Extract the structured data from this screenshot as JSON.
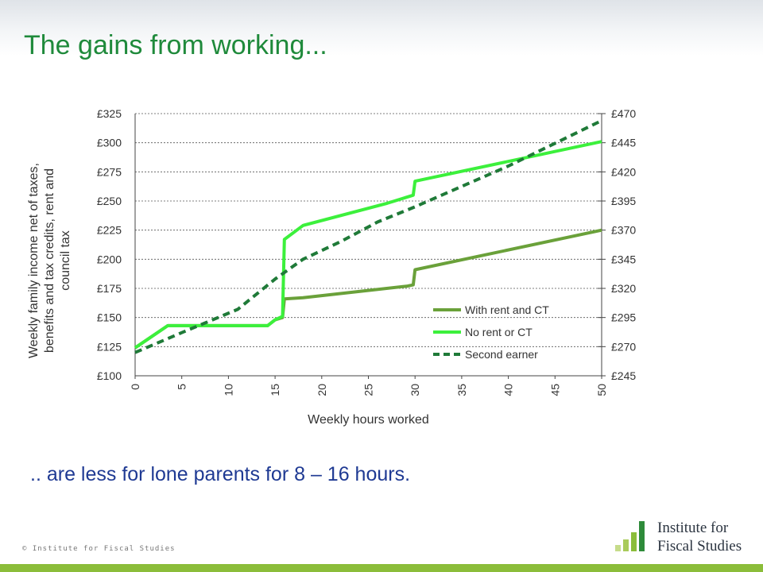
{
  "title": "The gains from working...",
  "subtitle": ".. are less for lone parents for 8 – 16 hours.",
  "copyright": "© Institute for Fiscal Studies",
  "logo": {
    "line1": "Institute for",
    "line2": "Fiscal Studies"
  },
  "colors": {
    "title": "#1f8a3b",
    "subtitle": "#1f3a93",
    "with_rent": "#6aa13a",
    "no_rent": "#3cf03c",
    "second_earner": "#1f7a38",
    "bottom_bar": "#8bbd3a"
  },
  "chart_data": {
    "type": "line",
    "xlabel": "Weekly hours worked",
    "ylabel": "Weekly family income net of taxes, benefits and tax credits, rent and council tax",
    "xlim": [
      0,
      50
    ],
    "ylim_left": [
      100,
      325
    ],
    "ylim_right": [
      245,
      470
    ],
    "x_ticks": [
      "0",
      "5",
      "10",
      "15",
      "20",
      "25",
      "30",
      "35",
      "40",
      "45",
      "50"
    ],
    "y_ticks_left": [
      "£100",
      "£125",
      "£150",
      "£175",
      "£200",
      "£225",
      "£250",
      "£275",
      "£300",
      "£325"
    ],
    "y_ticks_right": [
      "£245",
      "£270",
      "£295",
      "£320",
      "£345",
      "£370",
      "£395",
      "£420",
      "£445",
      "£470"
    ],
    "grid": true,
    "legend_position": "bottom-right",
    "series": [
      {
        "name": "With rent and CT",
        "axis": "left",
        "style": "solid",
        "points": [
          [
            0,
            124
          ],
          [
            3.5,
            143
          ],
          [
            14.2,
            143
          ],
          [
            15,
            148
          ],
          [
            15.8,
            150
          ],
          [
            16,
            166
          ],
          [
            18,
            167
          ],
          [
            29.2,
            177
          ],
          [
            29.8,
            178
          ],
          [
            30,
            191
          ],
          [
            50,
            225
          ]
        ]
      },
      {
        "name": "No rent or CT",
        "axis": "left",
        "style": "solid",
        "points": [
          [
            0,
            124
          ],
          [
            3.5,
            143
          ],
          [
            14.2,
            143
          ],
          [
            15,
            148
          ],
          [
            15.8,
            151
          ],
          [
            16,
            217
          ],
          [
            18,
            229
          ],
          [
            27,
            248
          ],
          [
            29.8,
            255
          ],
          [
            30,
            267
          ],
          [
            50,
            301
          ]
        ]
      },
      {
        "name": "Second earner",
        "axis": "right",
        "style": "dashed",
        "points": [
          [
            0,
            265
          ],
          [
            5,
            282
          ],
          [
            11,
            302
          ],
          [
            15,
            328
          ],
          [
            18,
            345
          ],
          [
            22,
            360
          ],
          [
            26,
            377
          ],
          [
            30,
            390
          ],
          [
            40,
            425
          ],
          [
            50,
            464
          ]
        ]
      }
    ]
  }
}
